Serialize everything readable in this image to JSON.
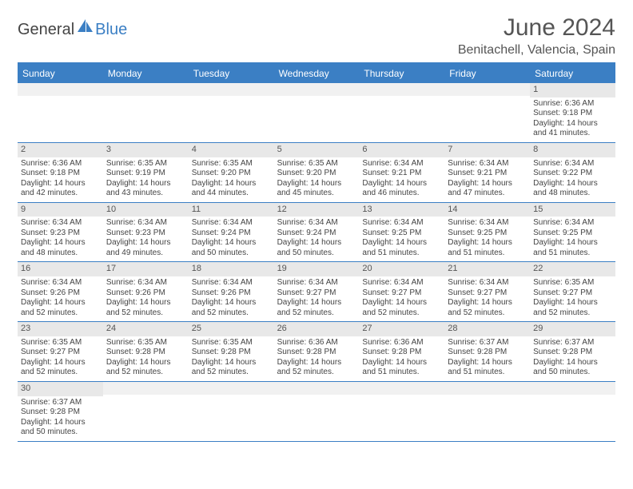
{
  "logo": {
    "dark": "General",
    "blue": "Blue"
  },
  "title": "June 2024",
  "location": "Benitachell, Valencia, Spain",
  "weekdays": [
    "Sunday",
    "Monday",
    "Tuesday",
    "Wednesday",
    "Thursday",
    "Friday",
    "Saturday"
  ],
  "colors": {
    "header_bg": "#3b7fc4",
    "daynum_bg": "#e8e8e8",
    "empty_bg": "#f1f1f1",
    "border": "#3b7fc4",
    "text": "#444"
  },
  "weeks": [
    [
      {
        "blank": true
      },
      {
        "blank": true
      },
      {
        "blank": true
      },
      {
        "blank": true
      },
      {
        "blank": true
      },
      {
        "blank": true
      },
      {
        "num": "1",
        "sunrise": "Sunrise: 6:36 AM",
        "sunset": "Sunset: 9:18 PM",
        "day1": "Daylight: 14 hours",
        "day2": "and 41 minutes."
      }
    ],
    [
      {
        "num": "2",
        "sunrise": "Sunrise: 6:36 AM",
        "sunset": "Sunset: 9:18 PM",
        "day1": "Daylight: 14 hours",
        "day2": "and 42 minutes."
      },
      {
        "num": "3",
        "sunrise": "Sunrise: 6:35 AM",
        "sunset": "Sunset: 9:19 PM",
        "day1": "Daylight: 14 hours",
        "day2": "and 43 minutes."
      },
      {
        "num": "4",
        "sunrise": "Sunrise: 6:35 AM",
        "sunset": "Sunset: 9:20 PM",
        "day1": "Daylight: 14 hours",
        "day2": "and 44 minutes."
      },
      {
        "num": "5",
        "sunrise": "Sunrise: 6:35 AM",
        "sunset": "Sunset: 9:20 PM",
        "day1": "Daylight: 14 hours",
        "day2": "and 45 minutes."
      },
      {
        "num": "6",
        "sunrise": "Sunrise: 6:34 AM",
        "sunset": "Sunset: 9:21 PM",
        "day1": "Daylight: 14 hours",
        "day2": "and 46 minutes."
      },
      {
        "num": "7",
        "sunrise": "Sunrise: 6:34 AM",
        "sunset": "Sunset: 9:21 PM",
        "day1": "Daylight: 14 hours",
        "day2": "and 47 minutes."
      },
      {
        "num": "8",
        "sunrise": "Sunrise: 6:34 AM",
        "sunset": "Sunset: 9:22 PM",
        "day1": "Daylight: 14 hours",
        "day2": "and 48 minutes."
      }
    ],
    [
      {
        "num": "9",
        "sunrise": "Sunrise: 6:34 AM",
        "sunset": "Sunset: 9:23 PM",
        "day1": "Daylight: 14 hours",
        "day2": "and 48 minutes."
      },
      {
        "num": "10",
        "sunrise": "Sunrise: 6:34 AM",
        "sunset": "Sunset: 9:23 PM",
        "day1": "Daylight: 14 hours",
        "day2": "and 49 minutes."
      },
      {
        "num": "11",
        "sunrise": "Sunrise: 6:34 AM",
        "sunset": "Sunset: 9:24 PM",
        "day1": "Daylight: 14 hours",
        "day2": "and 50 minutes."
      },
      {
        "num": "12",
        "sunrise": "Sunrise: 6:34 AM",
        "sunset": "Sunset: 9:24 PM",
        "day1": "Daylight: 14 hours",
        "day2": "and 50 minutes."
      },
      {
        "num": "13",
        "sunrise": "Sunrise: 6:34 AM",
        "sunset": "Sunset: 9:25 PM",
        "day1": "Daylight: 14 hours",
        "day2": "and 51 minutes."
      },
      {
        "num": "14",
        "sunrise": "Sunrise: 6:34 AM",
        "sunset": "Sunset: 9:25 PM",
        "day1": "Daylight: 14 hours",
        "day2": "and 51 minutes."
      },
      {
        "num": "15",
        "sunrise": "Sunrise: 6:34 AM",
        "sunset": "Sunset: 9:25 PM",
        "day1": "Daylight: 14 hours",
        "day2": "and 51 minutes."
      }
    ],
    [
      {
        "num": "16",
        "sunrise": "Sunrise: 6:34 AM",
        "sunset": "Sunset: 9:26 PM",
        "day1": "Daylight: 14 hours",
        "day2": "and 52 minutes."
      },
      {
        "num": "17",
        "sunrise": "Sunrise: 6:34 AM",
        "sunset": "Sunset: 9:26 PM",
        "day1": "Daylight: 14 hours",
        "day2": "and 52 minutes."
      },
      {
        "num": "18",
        "sunrise": "Sunrise: 6:34 AM",
        "sunset": "Sunset: 9:26 PM",
        "day1": "Daylight: 14 hours",
        "day2": "and 52 minutes."
      },
      {
        "num": "19",
        "sunrise": "Sunrise: 6:34 AM",
        "sunset": "Sunset: 9:27 PM",
        "day1": "Daylight: 14 hours",
        "day2": "and 52 minutes."
      },
      {
        "num": "20",
        "sunrise": "Sunrise: 6:34 AM",
        "sunset": "Sunset: 9:27 PM",
        "day1": "Daylight: 14 hours",
        "day2": "and 52 minutes."
      },
      {
        "num": "21",
        "sunrise": "Sunrise: 6:34 AM",
        "sunset": "Sunset: 9:27 PM",
        "day1": "Daylight: 14 hours",
        "day2": "and 52 minutes."
      },
      {
        "num": "22",
        "sunrise": "Sunrise: 6:35 AM",
        "sunset": "Sunset: 9:27 PM",
        "day1": "Daylight: 14 hours",
        "day2": "and 52 minutes."
      }
    ],
    [
      {
        "num": "23",
        "sunrise": "Sunrise: 6:35 AM",
        "sunset": "Sunset: 9:27 PM",
        "day1": "Daylight: 14 hours",
        "day2": "and 52 minutes."
      },
      {
        "num": "24",
        "sunrise": "Sunrise: 6:35 AM",
        "sunset": "Sunset: 9:28 PM",
        "day1": "Daylight: 14 hours",
        "day2": "and 52 minutes."
      },
      {
        "num": "25",
        "sunrise": "Sunrise: 6:35 AM",
        "sunset": "Sunset: 9:28 PM",
        "day1": "Daylight: 14 hours",
        "day2": "and 52 minutes."
      },
      {
        "num": "26",
        "sunrise": "Sunrise: 6:36 AM",
        "sunset": "Sunset: 9:28 PM",
        "day1": "Daylight: 14 hours",
        "day2": "and 52 minutes."
      },
      {
        "num": "27",
        "sunrise": "Sunrise: 6:36 AM",
        "sunset": "Sunset: 9:28 PM",
        "day1": "Daylight: 14 hours",
        "day2": "and 51 minutes."
      },
      {
        "num": "28",
        "sunrise": "Sunrise: 6:37 AM",
        "sunset": "Sunset: 9:28 PM",
        "day1": "Daylight: 14 hours",
        "day2": "and 51 minutes."
      },
      {
        "num": "29",
        "sunrise": "Sunrise: 6:37 AM",
        "sunset": "Sunset: 9:28 PM",
        "day1": "Daylight: 14 hours",
        "day2": "and 50 minutes."
      }
    ],
    [
      {
        "num": "30",
        "sunrise": "Sunrise: 6:37 AM",
        "sunset": "Sunset: 9:28 PM",
        "day1": "Daylight: 14 hours",
        "day2": "and 50 minutes."
      },
      {
        "blank": true
      },
      {
        "blank": true
      },
      {
        "blank": true
      },
      {
        "blank": true
      },
      {
        "blank": true
      },
      {
        "blank": true
      }
    ]
  ]
}
